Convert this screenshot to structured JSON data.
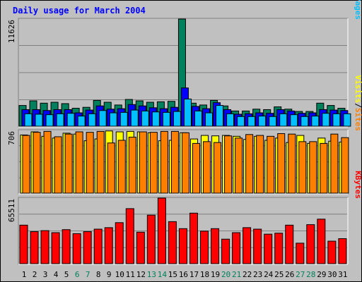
{
  "chart_data": [
    {
      "type": "bar",
      "title": "Daily usage for March 2004",
      "categories": [
        "1",
        "2",
        "3",
        "4",
        "5",
        "6",
        "7",
        "8",
        "9",
        "10",
        "11",
        "12",
        "13",
        "14",
        "15",
        "16",
        "17",
        "18",
        "19",
        "20",
        "21",
        "22",
        "23",
        "24",
        "25",
        "26",
        "27",
        "28",
        "29",
        "30",
        "31"
      ],
      "weekend_days": [
        "6",
        "7",
        "13",
        "14",
        "20",
        "21",
        "27",
        "28"
      ],
      "ymax_label": "11626",
      "ylim": [
        0,
        11626
      ],
      "legend": [
        "Pages",
        "/",
        "Files",
        "/",
        "Hits"
      ],
      "series": [
        {
          "name": "Hits",
          "color": "#00805c",
          "values": [
            2250,
            2750,
            2500,
            2600,
            2450,
            1950,
            2050,
            2800,
            2600,
            2300,
            2900,
            2750,
            2600,
            2650,
            2700,
            11626,
            2500,
            2300,
            2800,
            2200,
            1650,
            1650,
            1850,
            1800,
            2100,
            1850,
            1600,
            1600,
            2500,
            2250,
            1950
          ]
        },
        {
          "name": "Files",
          "color": "#0000ff",
          "values": [
            1800,
            1800,
            1700,
            1800,
            1800,
            1450,
            1750,
            2200,
            1850,
            1900,
            2350,
            2200,
            2000,
            1900,
            2050,
            4150,
            2150,
            1900,
            2550,
            1800,
            1300,
            1350,
            1450,
            1400,
            1800,
            1650,
            1400,
            1450,
            1800,
            1750,
            1700
          ]
        },
        {
          "name": "Pages",
          "color": "#00c0ff",
          "values": [
            1350,
            1300,
            1250,
            1350,
            1400,
            1100,
            1350,
            1700,
            1450,
            1500,
            1750,
            1650,
            1550,
            1500,
            1600,
            2950,
            1650,
            1450,
            2250,
            1350,
            1050,
            1050,
            1100,
            1050,
            1350,
            1250,
            1050,
            1100,
            1400,
            1350,
            1350
          ]
        }
      ]
    },
    {
      "type": "bar",
      "ymax_label": "706",
      "ylim": [
        0,
        706
      ],
      "legend": [
        "Sites",
        "/",
        "Visits"
      ],
      "series": [
        {
          "name": "Visits",
          "color": "#ffff00",
          "values": [
            655,
            690,
            640,
            620,
            675,
            665,
            590,
            610,
            700,
            690,
            695,
            690,
            680,
            590,
            595,
            680,
            610,
            650,
            645,
            650,
            640,
            605,
            640,
            595,
            620,
            570,
            650,
            560,
            620,
            585,
            575
          ]
        },
        {
          "name": "Sites",
          "color": "#ff8000",
          "values": [
            650,
            685,
            695,
            635,
            665,
            690,
            685,
            695,
            565,
            595,
            630,
            690,
            685,
            695,
            695,
            680,
            560,
            580,
            570,
            645,
            620,
            660,
            650,
            640,
            670,
            665,
            580,
            580,
            560,
            665,
            625
          ]
        }
      ]
    },
    {
      "type": "bar",
      "ymax_label": "65511",
      "ylim": [
        0,
        65511
      ],
      "legend": [
        "KBytes"
      ],
      "series": [
        {
          "name": "KBytes",
          "color": "#ff0000",
          "values": [
            38500,
            32000,
            33000,
            31000,
            34000,
            30000,
            32000,
            34500,
            36000,
            41000,
            55000,
            31500,
            48500,
            65511,
            42000,
            35000,
            50500,
            32500,
            35000,
            24500,
            31000,
            36000,
            34500,
            29500,
            30500,
            38500,
            20500,
            39000,
            44500,
            22500,
            25000
          ]
        }
      ]
    }
  ]
}
